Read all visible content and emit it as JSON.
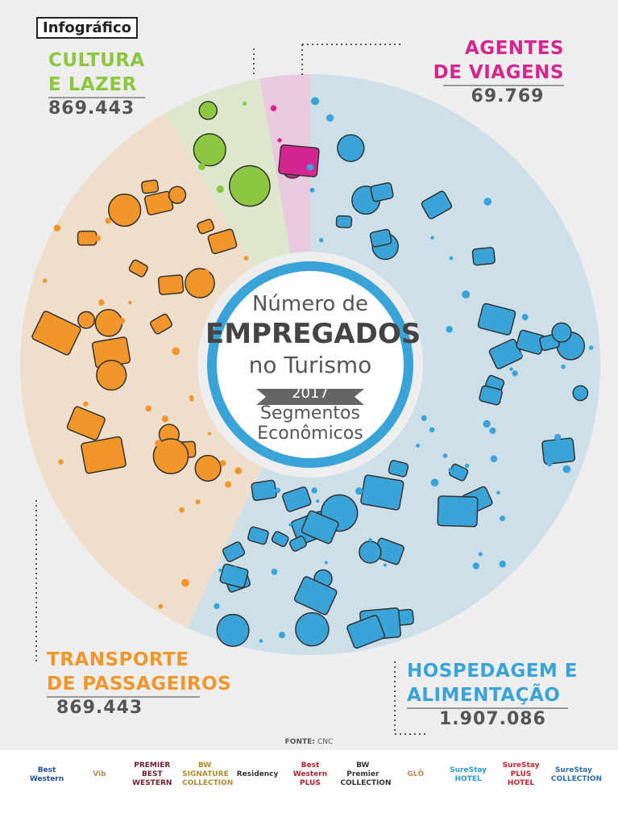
{
  "header": {
    "tag": "Infográfico"
  },
  "center": {
    "line1": "Número de",
    "line2": "EMPREGADOS",
    "line3": "no Turismo",
    "year": "2017",
    "line4": "Segmentos",
    "line5": "Econômicos"
  },
  "segments": [
    {
      "lines": [
        "CULTURA",
        "E LAZER"
      ],
      "value": "869.443"
    },
    {
      "lines": [
        "AGENTES",
        "DE VIAGENS"
      ],
      "value": "69.769"
    },
    {
      "lines": [
        "TRANSPORTE",
        "DE PASSAGEIROS"
      ],
      "value": "869.443"
    },
    {
      "lines": [
        "HOSPEDAGEM E",
        "ALIMENTAÇÃO"
      ],
      "value": "1.907.086"
    }
  ],
  "source": {
    "label": "FONTE:",
    "value": "CNC"
  },
  "logos": [
    "Best Western",
    "Vib",
    "PREMIER BEST WESTERN",
    "BW SIGNATURE COLLECTION",
    "Residency",
    "Best Western PLUS",
    "BW Premier COLLECTION",
    "GLŌ",
    "SureStay HOTEL",
    "SureStay PLUS HOTEL",
    "SureStay COLLECTION"
  ]
}
